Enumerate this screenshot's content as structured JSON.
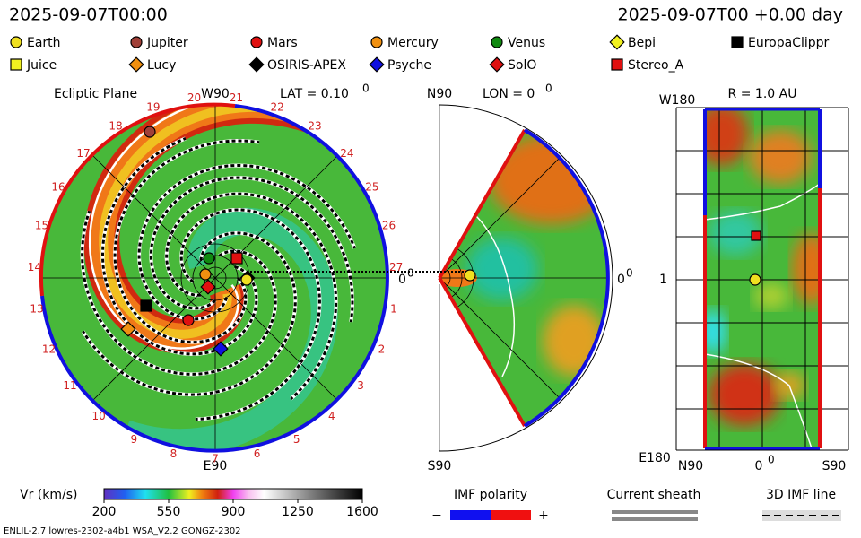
{
  "header": {
    "time": "2025-09-07T00:00",
    "time_offset": "2025-09-07T00 +0.00 day"
  },
  "legend": [
    {
      "name": "Earth",
      "color": "#f0e020",
      "shape": "circle"
    },
    {
      "name": "Jupiter",
      "color": "#a04038",
      "shape": "circle"
    },
    {
      "name": "Mars",
      "color": "#e01010",
      "shape": "circle"
    },
    {
      "name": "Mercury",
      "color": "#f09010",
      "shape": "circle"
    },
    {
      "name": "Venus",
      "color": "#108a10",
      "shape": "circle"
    },
    {
      "name": "Bepi",
      "color": "#f0f020",
      "shape": "diamond"
    },
    {
      "name": "EuropaClippr",
      "color": "#000000",
      "shape": "square"
    },
    {
      "name": "Juice",
      "color": "#f0f020",
      "shape": "square"
    },
    {
      "name": "Lucy",
      "color": "#f09010",
      "shape": "diamond"
    },
    {
      "name": "OSIRIS-APEX",
      "color": "#000000",
      "shape": "diamond"
    },
    {
      "name": "Psyche",
      "color": "#1010e0",
      "shape": "diamond"
    },
    {
      "name": "SolO",
      "color": "#e01010",
      "shape": "diamond"
    },
    {
      "name": "Stereo_A",
      "color": "#e01010",
      "shape": "square"
    }
  ],
  "ecliptic": {
    "title": "Ecliptic Plane",
    "top": "W90",
    "lat": "LAT = 0.10",
    "lat_deg": "0",
    "bottom": "E90",
    "right": "0",
    "right_deg": "0",
    "longitudes": [
      "1",
      "2",
      "3",
      "4",
      "5",
      "6",
      "7",
      "8",
      "9",
      "10",
      "11",
      "12",
      "13",
      "14",
      "15",
      "16",
      "17",
      "18",
      "19",
      "20",
      "21",
      "22",
      "23",
      "24",
      "25",
      "26",
      "27"
    ]
  },
  "meridional": {
    "top": "N90",
    "lon": "LON = 0",
    "lon_deg": "0",
    "right": "0",
    "right_deg": "0",
    "bottom": "S90"
  },
  "radial": {
    "top": "W180",
    "title": "R = 1.0 AU",
    "left": "1",
    "bottom": "E180",
    "x_left": "N90",
    "x_mid": "0",
    "x_mid_deg": "0",
    "x_right": "S90"
  },
  "colorbar": {
    "label": "Vr (km/s)",
    "range": [
      200,
      1600
    ],
    "ticks": [
      200,
      550,
      900,
      1250,
      1600
    ]
  },
  "imf_polarity": {
    "title": "IMF polarity",
    "minus": "−",
    "plus": "+"
  },
  "current_sheath": "Current sheath",
  "imf_line": "3D IMF line",
  "footer": "ENLIL-2.7 lowres-2302-a4b1 WSA_V2.2 GONGZ-2302"
}
